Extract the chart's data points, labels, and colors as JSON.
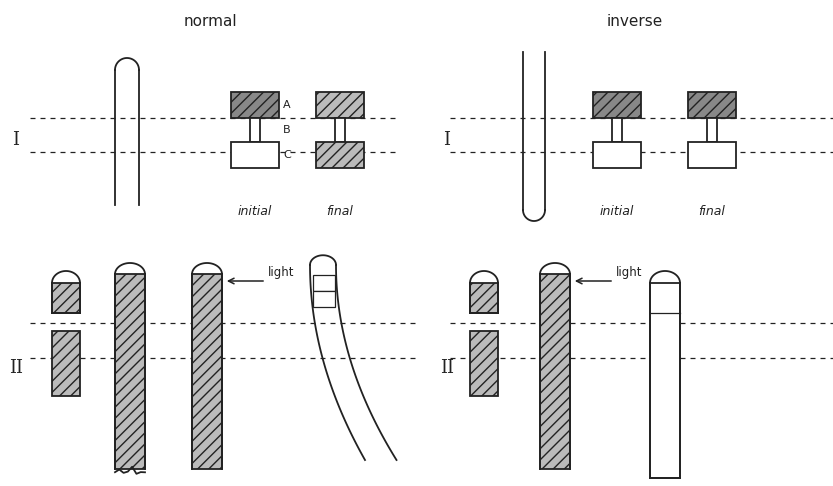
{
  "bg": "#ffffff",
  "lc": "#222222",
  "fc_dark": "#888888",
  "fc_mid": "#bbbbbb",
  "fc_white": "#ffffff",
  "lw": 1.3,
  "hatch": "///",
  "title_normal": "normal",
  "title_inverse": "inverse",
  "lbl_I": "I",
  "lbl_II": "II",
  "lbl_initial": "initial",
  "lbl_final": "final",
  "lbl_A": "A",
  "lbl_B": "B",
  "lbl_C": "C",
  "lbl_light": "light"
}
